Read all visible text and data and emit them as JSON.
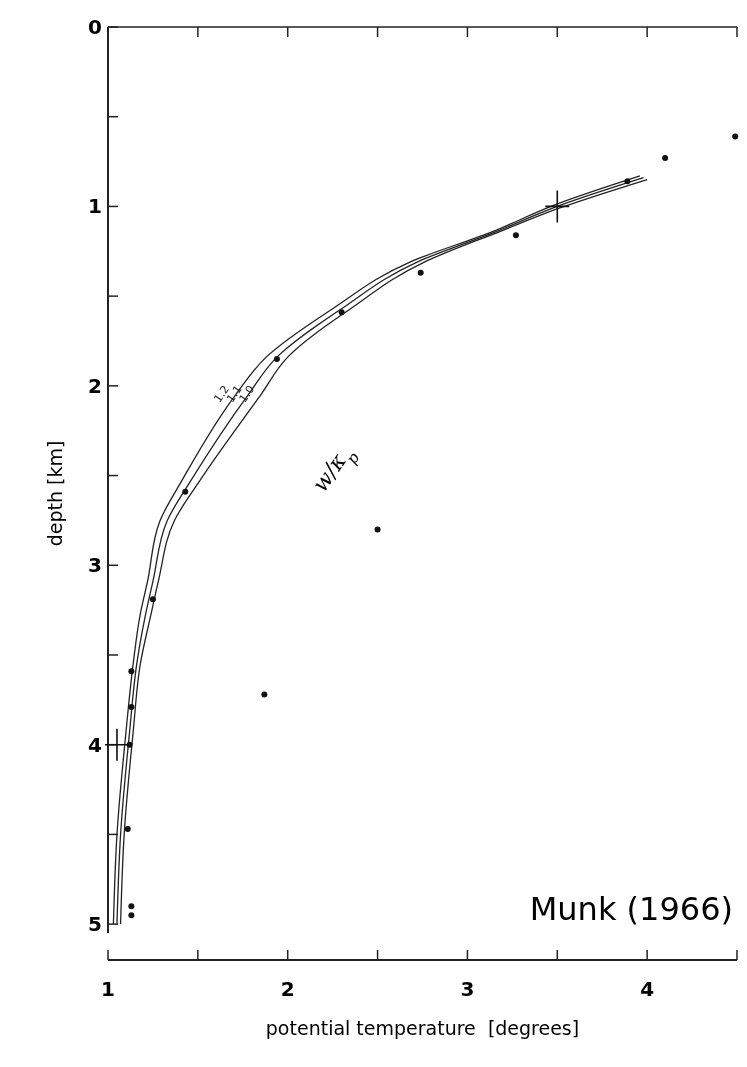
{
  "chart_data": {
    "type": "scatter",
    "xlabel": "potential temperature  [degrees]",
    "ylabel": "depth [km]",
    "xlim": [
      1,
      4.5
    ],
    "ylim": [
      5.2,
      0
    ],
    "xticks": [
      1,
      {
        "value": 1.5,
        "label": null
      },
      2,
      {
        "value": 2.5,
        "label": null
      },
      3,
      {
        "value": 3.5,
        "label": null
      },
      4,
      {
        "value": 4.5,
        "label": null
      }
    ],
    "yticks": [
      0,
      {
        "value": 0.5,
        "label": null
      },
      1,
      {
        "value": 1.5,
        "label": null
      },
      2,
      {
        "value": 2.5,
        "label": null
      },
      3,
      {
        "value": 3.5,
        "label": null
      },
      4,
      {
        "value": 4.5,
        "label": null
      },
      5
    ],
    "grid": false,
    "legend": false,
    "line_style": "solid",
    "series": [
      {
        "name": "1.2",
        "type": "line",
        "marker": "none",
        "color": "#222222",
        "x": [
          3.96,
          3.49,
          3.14,
          2.68,
          2.25,
          1.88,
          1.71,
          1.41,
          1.29,
          1.22,
          1.18,
          1.14,
          1.1,
          1.05,
          1.03
        ],
        "values": [
          0.83,
          0.99,
          1.14,
          1.31,
          1.57,
          1.84,
          2.05,
          2.53,
          2.75,
          3.09,
          3.27,
          3.55,
          3.93,
          4.5,
          5.0
        ]
      },
      {
        "name": "1.1",
        "type": "line",
        "marker": "none",
        "color": "#222222",
        "x": [
          3.98,
          3.5,
          3.16,
          2.72,
          2.3,
          1.94,
          1.78,
          1.46,
          1.33,
          1.25,
          1.21,
          1.16,
          1.12,
          1.07,
          1.05
        ],
        "values": [
          0.84,
          1.0,
          1.14,
          1.31,
          1.57,
          1.84,
          2.05,
          2.53,
          2.75,
          3.09,
          3.27,
          3.55,
          3.93,
          4.5,
          5.0
        ]
      },
      {
        "name": "1.0",
        "type": "line",
        "marker": "none",
        "color": "#222222",
        "x": [
          4.0,
          3.51,
          3.18,
          2.76,
          2.35,
          2.0,
          1.85,
          1.51,
          1.37,
          1.28,
          1.24,
          1.18,
          1.14,
          1.09,
          1.07
        ],
        "values": [
          0.85,
          1.01,
          1.14,
          1.31,
          1.57,
          1.84,
          2.05,
          2.53,
          2.75,
          3.09,
          3.27,
          3.55,
          3.93,
          4.5,
          5.0
        ]
      },
      {
        "marker": "circle",
        "color": "#111111",
        "x": [
          4.49,
          4.1,
          3.89,
          3.27,
          2.74,
          2.3,
          1.94,
          1.43,
          1.25,
          1.13,
          1.13,
          1.12,
          1.87,
          2.5,
          1.11,
          1.13,
          1.13
        ],
        "values": [
          0.61,
          0.73,
          0.86,
          1.16,
          1.37,
          1.59,
          1.85,
          2.59,
          3.19,
          3.59,
          3.79,
          4.0,
          3.72,
          2.8,
          4.47,
          4.9,
          4.95
        ]
      },
      {
        "marker": "cross",
        "color": "#111111",
        "x": [
          3.5,
          1.05
        ],
        "values": [
          1.0,
          4.0
        ]
      }
    ],
    "annotations": [
      "w/κ$_{p}$",
      "Munk (1966)"
    ]
  }
}
